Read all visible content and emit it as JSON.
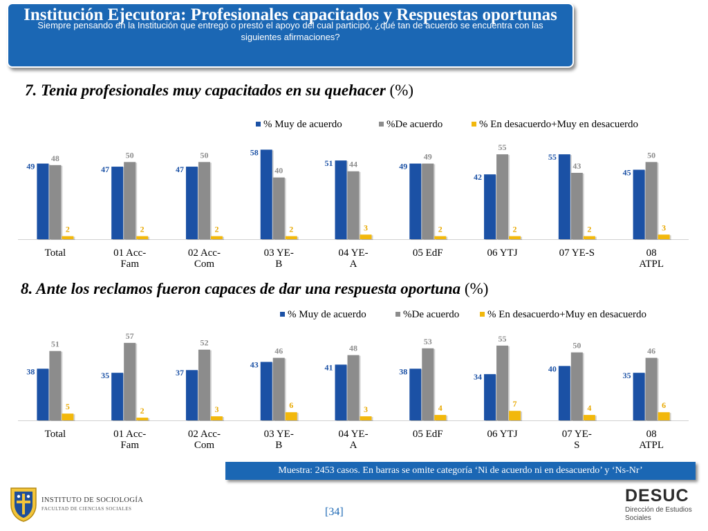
{
  "header": {
    "title": "Institución Ejecutora: Profesionales capacitados y Respuestas oportunas",
    "subtitle": "Siempre pensando en la Institución que entregó o prestó el apoyo del cual participó, ¿qué tan de acuerdo se encuentra con las siguientes afirmaciones?"
  },
  "colors": {
    "muy_de_acuerdo": "#1b51a5",
    "de_acuerdo": "#8c8c8c",
    "desacuerdo": "#f2b80c",
    "header_bg": "#1b67b4"
  },
  "chart_data": [
    {
      "type": "bar",
      "title": "7. Tenia profesionales muy capacitados en su quehacer",
      "unit": "(%)",
      "categories": [
        "Total",
        "01 Acc-Fam",
        "02 Acc-Com",
        "03 YE-B",
        "04 YE-A",
        "05 EdF",
        "06 YTJ",
        "07 YE-S",
        "08 ATPL"
      ],
      "category_lines": [
        [
          "Total"
        ],
        [
          "01 Acc-",
          "Fam"
        ],
        [
          "02 Acc-",
          "Com"
        ],
        [
          "03 YE-",
          "B"
        ],
        [
          "04 YE-",
          "A"
        ],
        [
          "05 EdF"
        ],
        [
          "06 YTJ"
        ],
        [
          "07 YE-S"
        ],
        [
          "08",
          "ATPL"
        ]
      ],
      "series": [
        {
          "name": "% Muy de acuerdo",
          "values": [
            49,
            47,
            47,
            58,
            51,
            49,
            42,
            55,
            45
          ]
        },
        {
          "name": "%De acuerdo",
          "values": [
            48,
            50,
            50,
            40,
            44,
            49,
            55,
            43,
            50
          ]
        },
        {
          "name": "% En desacuerdo+Muy en desacuerdo",
          "values": [
            2,
            2,
            2,
            2,
            3,
            2,
            2,
            2,
            3
          ]
        }
      ],
      "ylim": [
        0,
        60
      ],
      "legend": "top-right"
    },
    {
      "type": "bar",
      "title": "8. Ante los reclamos fueron capaces de dar una respuesta oportuna",
      "unit": "(%)",
      "categories": [
        "Total",
        "01 Acc-Fam",
        "02 Acc-Com",
        "03 YE-B",
        "04 YE-A",
        "05 EdF",
        "06 YTJ",
        "07 YE-S",
        "08 ATPL"
      ],
      "category_lines": [
        [
          "Total"
        ],
        [
          "01 Acc-",
          "Fam"
        ],
        [
          "02 Acc-",
          "Com"
        ],
        [
          "03 YE-",
          "B"
        ],
        [
          "04 YE-",
          "A"
        ],
        [
          "05 EdF"
        ],
        [
          "06 YTJ"
        ],
        [
          "07 YE-",
          "S"
        ],
        [
          "08",
          "ATPL"
        ]
      ],
      "series": [
        {
          "name": "% Muy de acuerdo",
          "values": [
            38,
            35,
            37,
            43,
            41,
            38,
            34,
            40,
            35
          ]
        },
        {
          "name": "%De acuerdo",
          "values": [
            51,
            57,
            52,
            46,
            48,
            53,
            55,
            50,
            46
          ]
        },
        {
          "name": "% En desacuerdo+Muy en desacuerdo",
          "values": [
            5,
            2,
            3,
            6,
            3,
            4,
            7,
            4,
            6
          ]
        }
      ],
      "ylim": [
        0,
        60
      ],
      "legend": "top-right"
    }
  ],
  "footer": {
    "note": "Muestra: 2453 casos. En barras se omite categoría ‘Ni de acuerdo ni en desacuerdo’ y ‘Ns-Nr’",
    "page": "[34]",
    "institute": "INSTITUTO DE SOCIOLOGÍA",
    "institute_sub": "FACULTAD DE CIENCIAS SOCIALES",
    "brand": "DESUC",
    "brand_sub": "Dirección de Estudios Sociales"
  }
}
